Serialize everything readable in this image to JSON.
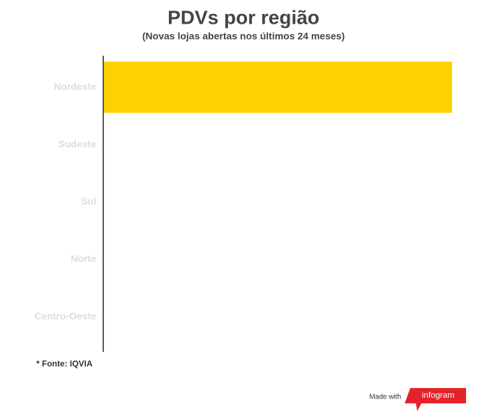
{
  "chart_data": {
    "type": "bar",
    "orientation": "horizontal",
    "title": "PDVs por região",
    "subtitle": "(Novas lojas abertas nos últimos 24 meses)",
    "categories": [
      "Nordeste",
      "Sudeste",
      "Sul",
      "Norte",
      "Centro-Oeste"
    ],
    "values": [
      100,
      0,
      0,
      0,
      0
    ],
    "color": "#ffd100",
    "xlim": [
      0,
      100
    ],
    "note": "* Fonte: IQVIA"
  },
  "branding": {
    "made_with": "Made with",
    "logo": "infogram"
  }
}
